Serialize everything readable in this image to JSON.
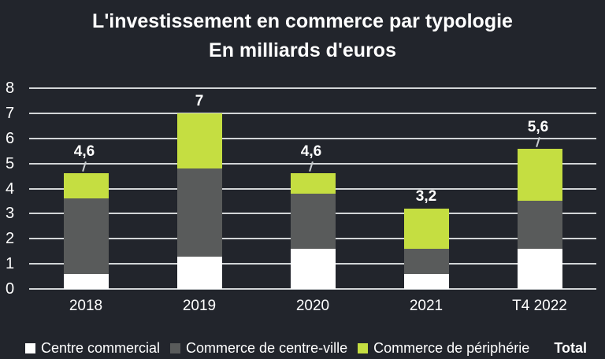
{
  "chart_data": {
    "type": "bar",
    "variant": "stacked",
    "title": "L'investissement en commerce par typologie",
    "subtitle": "En milliards d'euros",
    "categories": [
      "2018",
      "2019",
      "2020",
      "2021",
      "T4 2022"
    ],
    "series": [
      {
        "name": "Centre commercial",
        "color": "#ffffff",
        "values": [
          0.6,
          1.3,
          1.6,
          0.6,
          1.6
        ]
      },
      {
        "name": "Commerce de centre-ville",
        "color": "#595b5b",
        "values": [
          3.0,
          3.5,
          2.2,
          1.0,
          1.9
        ]
      },
      {
        "name": "Commerce de périphérie",
        "color": "#c5de41",
        "values": [
          1.0,
          2.2,
          0.8,
          1.6,
          2.1
        ]
      }
    ],
    "totals": [
      4.6,
      7,
      4.6,
      3.2,
      5.6
    ],
    "total_labels": [
      "4,6",
      "7",
      "4,6",
      "3,2",
      "5,6"
    ],
    "total_label_callout": [
      true,
      false,
      true,
      false,
      true
    ],
    "ylim": [
      0,
      8
    ],
    "ytick_step": 1,
    "yticks": [
      "0",
      "1",
      "2",
      "3",
      "4",
      "5",
      "6",
      "7",
      "8"
    ],
    "grid": "horizontal",
    "legend": {
      "position": "bottom",
      "total_label": "Total"
    },
    "colors": {
      "background": "#22252c",
      "gridline": "#d2d5d7",
      "text": "#ffffff"
    }
  }
}
